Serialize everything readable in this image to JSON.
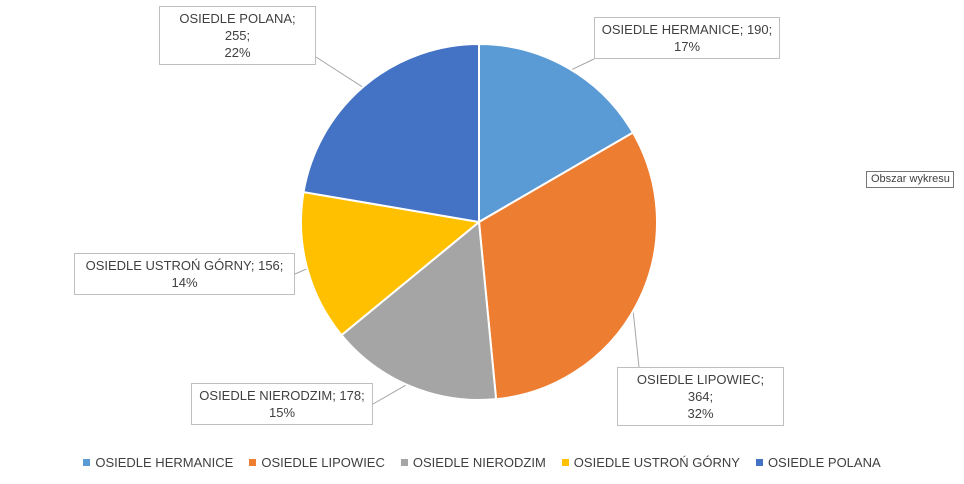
{
  "chart_data": {
    "type": "pie",
    "slices": [
      {
        "name": "OSIEDLE HERMANICE",
        "value": 190,
        "percent": "17%",
        "color": "#5B9BD5",
        "callout_line1": "OSIEDLE HERMANICE; 190;",
        "callout_line2": "17%"
      },
      {
        "name": "OSIEDLE LIPOWIEC",
        "value": 364,
        "percent": "32%",
        "color": "#ED7D31",
        "callout_line1": "OSIEDLE LIPOWIEC; 364;",
        "callout_line2": "32%"
      },
      {
        "name": "OSIEDLE NIERODZIM",
        "value": 178,
        "percent": "15%",
        "color": "#A5A5A5",
        "callout_line1": "OSIEDLE NIERODZIM; 178;",
        "callout_line2": "15%"
      },
      {
        "name": "OSIEDLE USTROŃ GÓRNY",
        "value": 156,
        "percent": "14%",
        "color": "#FFC000",
        "callout_line1": "OSIEDLE USTROŃ GÓRNY; 156;",
        "callout_line2": "14%"
      },
      {
        "name": "OSIEDLE POLANA",
        "value": 255,
        "percent": "22%",
        "color": "#4472C4",
        "callout_line1": "OSIEDLE POLANA; 255;",
        "callout_line2": "22%"
      }
    ],
    "legend_position": "bottom"
  },
  "tooltip_text": "Obszar wykresu"
}
